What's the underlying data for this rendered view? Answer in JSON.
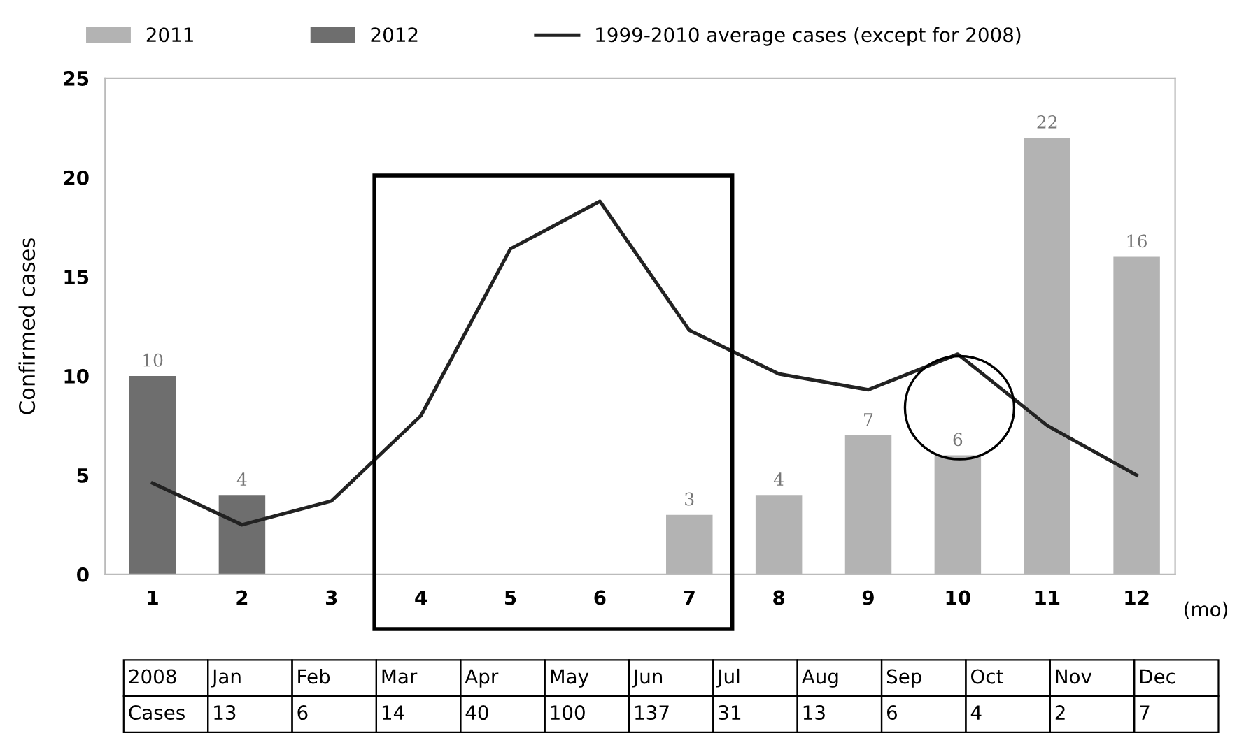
{
  "chart_data": [
    {
      "type": "bar",
      "ylabel": "Confirmed cases",
      "categories": [
        "1",
        "2",
        "3",
        "4",
        "5",
        "6",
        "7",
        "8",
        "9",
        "10",
        "11",
        "12"
      ],
      "series": [
        {
          "name": "2011",
          "color": "#b3b3b3",
          "values": [
            null,
            null,
            null,
            null,
            null,
            null,
            3,
            4,
            7,
            6,
            22,
            16
          ],
          "value_labels": [
            null,
            null,
            null,
            null,
            null,
            null,
            "3",
            "4",
            "7",
            "6",
            "22",
            "16"
          ]
        },
        {
          "name": "2012",
          "color": "#6e6e6e",
          "values": [
            10,
            4,
            null,
            null,
            null,
            null,
            null,
            null,
            null,
            null,
            null,
            null
          ],
          "value_labels": [
            "10",
            "4",
            null,
            null,
            null,
            null,
            null,
            null,
            null,
            null,
            null,
            null
          ]
        },
        {
          "name": "1999-2010 average cases (except for 2008)",
          "type": "line",
          "color": "#222222",
          "values": [
            4.6,
            2.5,
            3.7,
            8.0,
            16.4,
            18.8,
            12.3,
            10.1,
            9.3,
            11.1,
            7.5,
            5.0
          ]
        }
      ],
      "ylim": [
        0,
        25
      ],
      "yticks": [
        0,
        5,
        10,
        15,
        20,
        25
      ],
      "grid": false,
      "legend": "top",
      "annotations": [
        "(mo)"
      ]
    },
    {
      "type": "other",
      "title": "2008",
      "ylabel": "Cases",
      "categories": [
        "Jan",
        "Feb",
        "Mar",
        "Apr",
        "May",
        "Jun",
        "Jul",
        "Aug",
        "Sep",
        "Oct",
        "Nov",
        "Dec"
      ],
      "values": [
        13,
        6,
        14,
        40,
        100,
        137,
        31,
        13,
        6,
        4,
        2,
        7
      ],
      "data_labels": true
    }
  ]
}
